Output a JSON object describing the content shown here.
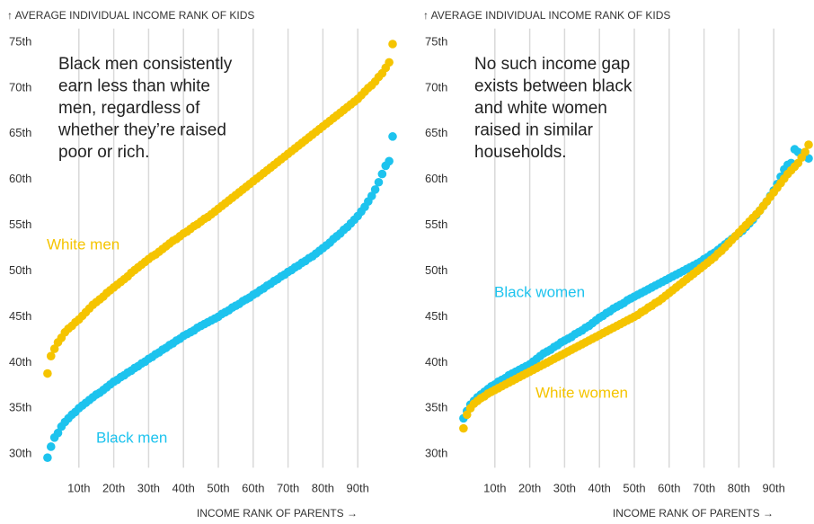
{
  "chart_data": [
    {
      "type": "scatter",
      "y_label": "↑ AVERAGE INDIVIDUAL INCOME RANK OF KIDS",
      "x_label": "INCOME RANK OF PARENTS →",
      "annotation": [
        "Black men consistently",
        "earn less than white",
        "men, regardless of",
        "whether they’re raised",
        "poor or rich."
      ],
      "xlim": [
        0,
        100
      ],
      "ylim": [
        28.5,
        76.5
      ],
      "grid": true,
      "xticks": [
        {
          "value": 10,
          "label": "10th"
        },
        {
          "value": 20,
          "label": "20th"
        },
        {
          "value": 30,
          "label": "30th"
        },
        {
          "value": 40,
          "label": "40th"
        },
        {
          "value": 50,
          "label": "50th"
        },
        {
          "value": 60,
          "label": "60th"
        },
        {
          "value": 70,
          "label": "70th"
        },
        {
          "value": 80,
          "label": "80th"
        },
        {
          "value": 90,
          "label": "90th"
        }
      ],
      "yticks": [
        {
          "value": 30,
          "label": "30th"
        },
        {
          "value": 35,
          "label": "35th"
        },
        {
          "value": 40,
          "label": "40th"
        },
        {
          "value": 45,
          "label": "45th"
        },
        {
          "value": 50,
          "label": "50th"
        },
        {
          "value": 55,
          "label": "55th"
        },
        {
          "value": 60,
          "label": "60th"
        },
        {
          "value": 65,
          "label": "65th"
        },
        {
          "value": 70,
          "label": "70th"
        },
        {
          "value": 75,
          "label": "75th"
        }
      ],
      "x": [
        1,
        2,
        3,
        4,
        5,
        6,
        7,
        8,
        9,
        10,
        11,
        12,
        13,
        14,
        15,
        16,
        17,
        18,
        19,
        20,
        21,
        22,
        23,
        24,
        25,
        26,
        27,
        28,
        29,
        30,
        31,
        32,
        33,
        34,
        35,
        36,
        37,
        38,
        39,
        40,
        41,
        42,
        43,
        44,
        45,
        46,
        47,
        48,
        49,
        50,
        51,
        52,
        53,
        54,
        55,
        56,
        57,
        58,
        59,
        60,
        61,
        62,
        63,
        64,
        65,
        66,
        67,
        68,
        69,
        70,
        71,
        72,
        73,
        74,
        75,
        76,
        77,
        78,
        79,
        80,
        81,
        82,
        83,
        84,
        85,
        86,
        87,
        88,
        89,
        90,
        91,
        92,
        93,
        94,
        95,
        96,
        97,
        98,
        99,
        100
      ],
      "series": [
        {
          "name": "White men",
          "color": "#f5c400",
          "values": [
            38.8,
            40.7,
            41.5,
            42.2,
            42.7,
            43.3,
            43.7,
            44.0,
            44.4,
            44.7,
            45.1,
            45.5,
            45.9,
            46.3,
            46.6,
            46.9,
            47.2,
            47.6,
            47.9,
            48.2,
            48.5,
            48.8,
            49.1,
            49.4,
            49.8,
            50.1,
            50.4,
            50.7,
            51.0,
            51.3,
            51.6,
            51.8,
            52.1,
            52.4,
            52.7,
            53.0,
            53.3,
            53.5,
            53.8,
            54.1,
            54.3,
            54.6,
            54.9,
            55.1,
            55.4,
            55.7,
            55.9,
            56.2,
            56.5,
            56.8,
            57.1,
            57.4,
            57.7,
            58.0,
            58.3,
            58.6,
            58.9,
            59.2,
            59.5,
            59.8,
            60.1,
            60.4,
            60.7,
            61.0,
            61.3,
            61.6,
            61.9,
            62.2,
            62.5,
            62.8,
            63.1,
            63.4,
            63.7,
            64.0,
            64.3,
            64.6,
            64.9,
            65.2,
            65.5,
            65.8,
            66.1,
            66.4,
            66.7,
            67.0,
            67.3,
            67.6,
            67.9,
            68.2,
            68.5,
            68.8,
            69.2,
            69.6,
            70.0,
            70.3,
            70.7,
            71.2,
            71.6,
            72.2,
            72.8,
            74.8
          ]
        },
        {
          "name": "Black men",
          "color": "#1dc3ee",
          "values": [
            29.6,
            30.8,
            31.8,
            32.3,
            33.0,
            33.5,
            33.9,
            34.3,
            34.6,
            35.0,
            35.3,
            35.6,
            35.9,
            36.2,
            36.5,
            36.7,
            37.0,
            37.3,
            37.6,
            37.9,
            38.1,
            38.4,
            38.6,
            38.9,
            39.1,
            39.4,
            39.6,
            39.9,
            40.1,
            40.4,
            40.6,
            40.9,
            41.1,
            41.4,
            41.6,
            41.9,
            42.1,
            42.4,
            42.6,
            42.9,
            43.1,
            43.3,
            43.5,
            43.8,
            44.0,
            44.2,
            44.4,
            44.6,
            44.8,
            45.0,
            45.3,
            45.5,
            45.7,
            46.0,
            46.2,
            46.4,
            46.7,
            46.9,
            47.1,
            47.4,
            47.6,
            47.9,
            48.1,
            48.4,
            48.6,
            48.9,
            49.1,
            49.4,
            49.6,
            49.9,
            50.1,
            50.4,
            50.6,
            50.9,
            51.1,
            51.4,
            51.6,
            51.9,
            52.2,
            52.5,
            52.8,
            53.1,
            53.5,
            53.8,
            54.1,
            54.5,
            54.8,
            55.2,
            55.6,
            56.0,
            56.5,
            57.0,
            57.6,
            58.2,
            58.9,
            59.7,
            60.6,
            61.5,
            62.0,
            64.7
          ]
        }
      ]
    },
    {
      "type": "scatter",
      "y_label": "↑ AVERAGE INDIVIDUAL INCOME RANK OF KIDS",
      "x_label": "INCOME RANK OF PARENTS →",
      "annotation": [
        "No such income gap",
        "exists between black",
        "and white women",
        "raised in similar",
        "households."
      ],
      "xlim": [
        0,
        100
      ],
      "ylim": [
        28.5,
        76.5
      ],
      "grid": true,
      "xticks": [
        {
          "value": 10,
          "label": "10th"
        },
        {
          "value": 20,
          "label": "20th"
        },
        {
          "value": 30,
          "label": "30th"
        },
        {
          "value": 40,
          "label": "40th"
        },
        {
          "value": 50,
          "label": "50th"
        },
        {
          "value": 60,
          "label": "60th"
        },
        {
          "value": 70,
          "label": "70th"
        },
        {
          "value": 80,
          "label": "80th"
        },
        {
          "value": 90,
          "label": "90th"
        }
      ],
      "yticks": [
        {
          "value": 30,
          "label": "30th"
        },
        {
          "value": 35,
          "label": "35th"
        },
        {
          "value": 40,
          "label": "40th"
        },
        {
          "value": 45,
          "label": "45th"
        },
        {
          "value": 50,
          "label": "50th"
        },
        {
          "value": 55,
          "label": "55th"
        },
        {
          "value": 60,
          "label": "60th"
        },
        {
          "value": 65,
          "label": "65th"
        },
        {
          "value": 70,
          "label": "70th"
        },
        {
          "value": 75,
          "label": "75th"
        }
      ],
      "x": [
        1,
        2,
        3,
        4,
        5,
        6,
        7,
        8,
        9,
        10,
        11,
        12,
        13,
        14,
        15,
        16,
        17,
        18,
        19,
        20,
        21,
        22,
        23,
        24,
        25,
        26,
        27,
        28,
        29,
        30,
        31,
        32,
        33,
        34,
        35,
        36,
        37,
        38,
        39,
        40,
        41,
        42,
        43,
        44,
        45,
        46,
        47,
        48,
        49,
        50,
        51,
        52,
        53,
        54,
        55,
        56,
        57,
        58,
        59,
        60,
        61,
        62,
        63,
        64,
        65,
        66,
        67,
        68,
        69,
        70,
        71,
        72,
        73,
        74,
        75,
        76,
        77,
        78,
        79,
        80,
        81,
        82,
        83,
        84,
        85,
        86,
        87,
        88,
        89,
        90,
        91,
        92,
        93,
        94,
        95,
        96,
        97,
        98,
        99,
        100
      ],
      "series": [
        {
          "name": "Black women",
          "color": "#1dc3ee",
          "values": [
            33.9,
            34.7,
            35.4,
            35.8,
            36.2,
            36.5,
            36.8,
            37.1,
            37.4,
            37.6,
            37.9,
            38.1,
            38.3,
            38.6,
            38.8,
            39.0,
            39.2,
            39.4,
            39.6,
            39.8,
            40.1,
            40.4,
            40.7,
            41.0,
            41.2,
            41.4,
            41.7,
            41.9,
            42.2,
            42.4,
            42.6,
            42.8,
            43.1,
            43.3,
            43.5,
            43.8,
            44.0,
            44.3,
            44.6,
            44.9,
            45.1,
            45.4,
            45.6,
            45.9,
            46.1,
            46.3,
            46.5,
            46.8,
            47.0,
            47.2,
            47.4,
            47.6,
            47.8,
            48.0,
            48.2,
            48.4,
            48.6,
            48.8,
            49.0,
            49.2,
            49.4,
            49.6,
            49.8,
            50.0,
            50.2,
            50.4,
            50.6,
            50.8,
            51.0,
            51.3,
            51.5,
            51.8,
            52.0,
            52.3,
            52.6,
            52.9,
            53.2,
            53.5,
            53.8,
            54.1,
            54.4,
            54.8,
            55.2,
            55.6,
            56.1,
            56.6,
            57.1,
            57.6,
            58.2,
            58.8,
            59.5,
            60.3,
            61.1,
            61.6,
            61.8,
            63.3,
            63.0,
            62.8,
            62.6,
            62.3
          ]
        },
        {
          "name": "White women",
          "color": "#f5c400",
          "values": [
            32.8,
            34.3,
            35.0,
            35.5,
            35.8,
            36.1,
            36.3,
            36.6,
            36.8,
            37.0,
            37.2,
            37.4,
            37.6,
            37.8,
            38.0,
            38.2,
            38.4,
            38.6,
            38.8,
            39.0,
            39.2,
            39.4,
            39.6,
            39.8,
            40.0,
            40.2,
            40.4,
            40.6,
            40.8,
            41.0,
            41.2,
            41.4,
            41.6,
            41.8,
            42.0,
            42.2,
            42.4,
            42.6,
            42.8,
            43.0,
            43.2,
            43.4,
            43.6,
            43.8,
            44.0,
            44.2,
            44.4,
            44.6,
            44.8,
            45.0,
            45.2,
            45.5,
            45.7,
            46.0,
            46.2,
            46.5,
            46.7,
            47.0,
            47.3,
            47.6,
            47.9,
            48.2,
            48.5,
            48.8,
            49.1,
            49.4,
            49.7,
            50.0,
            50.3,
            50.6,
            50.9,
            51.2,
            51.5,
            51.9,
            52.2,
            52.6,
            53.0,
            53.4,
            53.8,
            54.2,
            54.6,
            55.0,
            55.4,
            55.8,
            56.2,
            56.6,
            57.1,
            57.6,
            58.1,
            58.6,
            59.1,
            59.6,
            60.1,
            60.6,
            61.0,
            61.4,
            61.8,
            62.4,
            63.0,
            63.8
          ]
        }
      ]
    }
  ]
}
